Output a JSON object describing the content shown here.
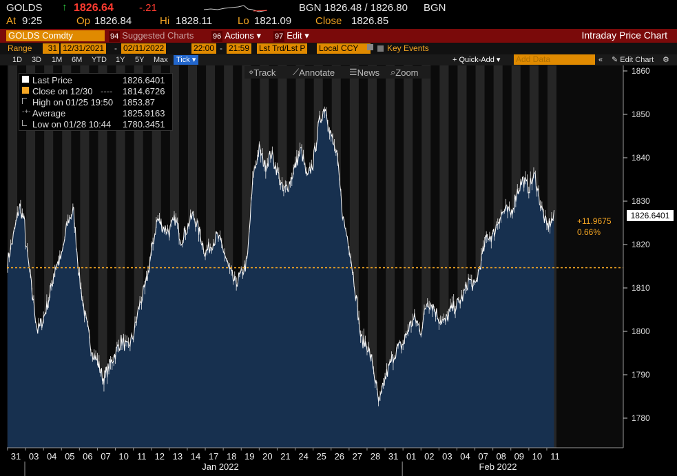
{
  "quote": {
    "ticker": "GOLDS",
    "arrow": "↑",
    "last": "1826.64",
    "change": "-.21",
    "source": "BGN",
    "bid_ask": "1826.48 / 1826.80",
    "source2": "BGN",
    "at_label": "At",
    "time": "9:25",
    "op_label": "Op",
    "open": "1826.84",
    "hi_label": "Hi",
    "high": "1828.11",
    "lo_label": "Lo",
    "low": "1821.09",
    "close_label": "Close",
    "close": "1826.85"
  },
  "toolbar": {
    "security": "GOLDS Comdty",
    "suggested_num": "94",
    "suggested_label": "Suggested Charts",
    "actions_num": "96",
    "actions_label": "Actions",
    "edit_num": "97",
    "edit_label": "Edit",
    "title": "Intraday Price Chart"
  },
  "range_bar": {
    "range_label": "Range",
    "range_days": "31",
    "start_date": "12/31/2021",
    "end_date": "02/11/2022",
    "start_time": "22:00",
    "end_time": "21:59",
    "price_type": "Lst Trd/Lst P",
    "currency": "Local CCY",
    "key_events": "Key Events"
  },
  "periods": [
    "1D",
    "3D",
    "1M",
    "6M",
    "YTD",
    "1Y",
    "5Y",
    "Max"
  ],
  "active_period": "Tick",
  "quick_add": "+ Quick-Add",
  "add_data_placeholder": "Add Data",
  "edit_chart": "Edit Chart",
  "tools": {
    "track": "Track",
    "annotate": "Annotate",
    "news": "News",
    "zoom": "Zoom"
  },
  "legend": {
    "last_price_label": "Last Price",
    "last_price_value": "1826.6401",
    "close_label": "Close on 12/30",
    "close_value": "1814.6726",
    "high_label": "High on 01/25 19:50",
    "high_value": "1853.87",
    "average_label": "Average",
    "average_value": "1825.9163",
    "low_label": "Low on 01/28 10:44",
    "low_value": "1780.3451"
  },
  "price_tag": "1826.6401",
  "change_abs": "+11.9675",
  "change_pct": "0.66%",
  "colors": {
    "amber": "#f5a623",
    "area_fill": "#17304f",
    "area_line": "#ffffff",
    "ref_line": "#f5a623",
    "down": "#ff3b30",
    "up": "#2ecc40"
  },
  "chart_data": {
    "type": "area",
    "ylim": [
      1774,
      1862
    ],
    "yticks": [
      1780,
      1790,
      1800,
      1810,
      1820,
      1830,
      1840,
      1850,
      1860
    ],
    "reference_close": 1814.6726,
    "day_labels": [
      "31",
      "03",
      "04",
      "05",
      "06",
      "07",
      "10",
      "11",
      "12",
      "13",
      "14",
      "17",
      "18",
      "19",
      "20",
      "21",
      "24",
      "25",
      "26",
      "27",
      "28",
      "31",
      "01",
      "02",
      "03",
      "04",
      "07",
      "08",
      "09",
      "10",
      "11"
    ],
    "month_labels": [
      "Jan 2022",
      "Feb 2022"
    ],
    "daily_path": [
      {
        "day": "31",
        "values": [
          1816,
          1822,
          1829,
          1824
        ]
      },
      {
        "day": "03",
        "values": [
          1821,
          1810,
          1800,
          1803
        ]
      },
      {
        "day": "04",
        "values": [
          1803,
          1808,
          1815,
          1817
        ]
      },
      {
        "day": "05",
        "values": [
          1817,
          1825,
          1828,
          1812
        ]
      },
      {
        "day": "06",
        "values": [
          1812,
          1803,
          1796,
          1793
        ]
      },
      {
        "day": "07",
        "values": [
          1793,
          1789,
          1792,
          1795
        ]
      },
      {
        "day": "10",
        "values": [
          1795,
          1798,
          1796,
          1799
        ]
      },
      {
        "day": "11",
        "values": [
          1799,
          1806,
          1810,
          1818
        ]
      },
      {
        "day": "12",
        "values": [
          1818,
          1826,
          1824,
          1823
        ]
      },
      {
        "day": "13",
        "values": [
          1823,
          1826,
          1821,
          1824
        ]
      },
      {
        "day": "14",
        "values": [
          1824,
          1827,
          1823,
          1818
        ]
      },
      {
        "day": "17",
        "values": [
          1818,
          1820,
          1822,
          1819
        ]
      },
      {
        "day": "18",
        "values": [
          1819,
          1814,
          1811,
          1813
        ]
      },
      {
        "day": "19",
        "values": [
          1813,
          1816,
          1836,
          1842
        ]
      },
      {
        "day": "20",
        "values": [
          1842,
          1838,
          1841,
          1837
        ]
      },
      {
        "day": "21",
        "values": [
          1837,
          1832,
          1834,
          1838
        ]
      },
      {
        "day": "24",
        "values": [
          1838,
          1842,
          1835,
          1839
        ]
      },
      {
        "day": "25",
        "values": [
          1839,
          1848,
          1852,
          1845
        ]
      },
      {
        "day": "26",
        "values": [
          1845,
          1840,
          1826,
          1820
        ]
      },
      {
        "day": "27",
        "values": [
          1820,
          1810,
          1798,
          1797
        ]
      },
      {
        "day": "28",
        "values": [
          1797,
          1792,
          1783,
          1789
        ]
      },
      {
        "day": "31",
        "values": [
          1789,
          1793,
          1796,
          1797
        ]
      },
      {
        "day": "01",
        "values": [
          1797,
          1801,
          1803,
          1800
        ]
      },
      {
        "day": "02",
        "values": [
          1800,
          1807,
          1806,
          1803
        ]
      },
      {
        "day": "03",
        "values": [
          1803,
          1802,
          1805,
          1806
        ]
      },
      {
        "day": "04",
        "values": [
          1806,
          1808,
          1812,
          1810
        ]
      },
      {
        "day": "07",
        "values": [
          1810,
          1816,
          1822,
          1822
        ]
      },
      {
        "day": "08",
        "values": [
          1822,
          1826,
          1828,
          1827
        ]
      },
      {
        "day": "09",
        "values": [
          1827,
          1832,
          1835,
          1833
        ]
      },
      {
        "day": "10",
        "values": [
          1833,
          1836,
          1829,
          1824
        ]
      },
      {
        "day": "11",
        "values": [
          1824,
          1826.64
        ]
      }
    ]
  }
}
